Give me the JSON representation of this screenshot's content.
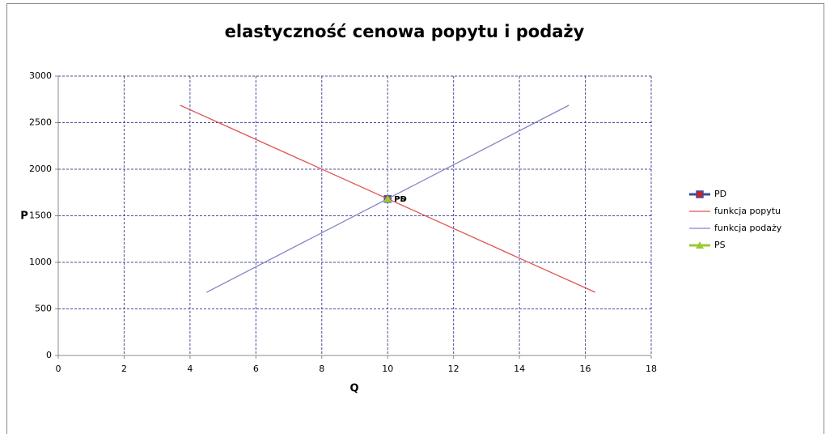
{
  "chart_data": {
    "type": "scatter",
    "title": "elastyczność cenowa popytu i podaży",
    "x_label": "Q",
    "y_label": "P",
    "xlim": [
      0,
      18
    ],
    "xticks": [
      0,
      2,
      4,
      6,
      8,
      10,
      12,
      14,
      16,
      18
    ],
    "ylim": [
      0,
      3000
    ],
    "yticks": [
      0,
      500,
      1000,
      1500,
      2000,
      2500,
      3000
    ],
    "grid": true,
    "legend": "right",
    "series": [
      {
        "name": "PD",
        "color": "#3a4fa0",
        "marker": "square",
        "marker_color": "#d02020",
        "x": [
          10
        ],
        "values": [
          1680
        ],
        "point_label": true
      },
      {
        "name": "funkcja popytu",
        "color": "#e05555",
        "x": [
          3.7,
          16.3
        ],
        "values": [
          2687,
          678
        ]
      },
      {
        "name": "funkcja podaży",
        "color": "#8585c5",
        "x": [
          4.5,
          15.5
        ],
        "values": [
          678,
          2687
        ]
      },
      {
        "name": "PS",
        "color": "#99cc33",
        "marker": "triangle",
        "marker_color": "#99cc33",
        "x": [
          10
        ],
        "values": [
          1680
        ],
        "point_label": true
      }
    ]
  }
}
